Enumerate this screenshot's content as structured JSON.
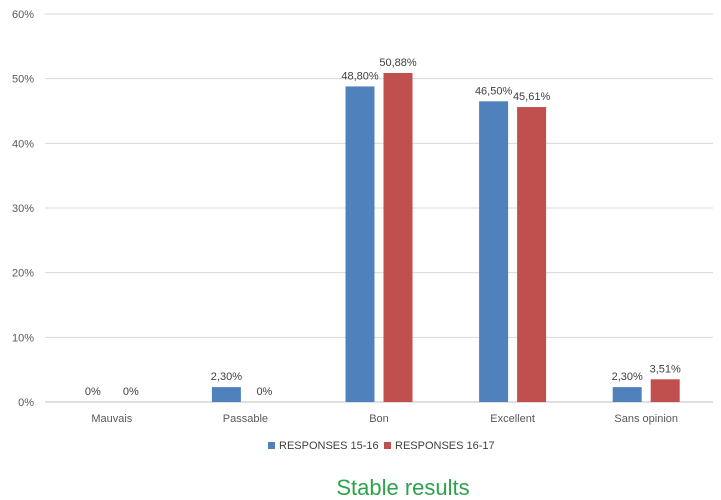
{
  "chart_data": {
    "type": "bar",
    "categories": [
      "Mauvais",
      "Passable",
      "Bon",
      "Excellent",
      "Sans opinion"
    ],
    "series": [
      {
        "name": "RESPONSES 15-16",
        "color": "#4f81bd",
        "values": [
          0,
          2.3,
          48.8,
          46.5,
          2.3
        ],
        "labels": [
          "0%",
          "2,30%",
          "48,80%",
          "46,50%",
          "2,30%"
        ]
      },
      {
        "name": "RESPONSES 16-17",
        "color": "#c0504d",
        "values": [
          0,
          0,
          50.88,
          45.61,
          3.51
        ],
        "labels": [
          "0%",
          "0%",
          "50,88%",
          "45,61%",
          "3,51%"
        ]
      }
    ],
    "ylim": [
      0,
      60
    ],
    "yticks": [
      0,
      10,
      20,
      30,
      40,
      50,
      60
    ],
    "ytick_labels": [
      "0%",
      "10%",
      "20%",
      "30%",
      "40%",
      "50%",
      "60%"
    ],
    "grid": true,
    "legend_position": "bottom"
  },
  "caption": "Stable results",
  "colors": {
    "grid": "#d9d9d9",
    "axis": "#bfbfbf",
    "caption": "#2ea24a"
  }
}
